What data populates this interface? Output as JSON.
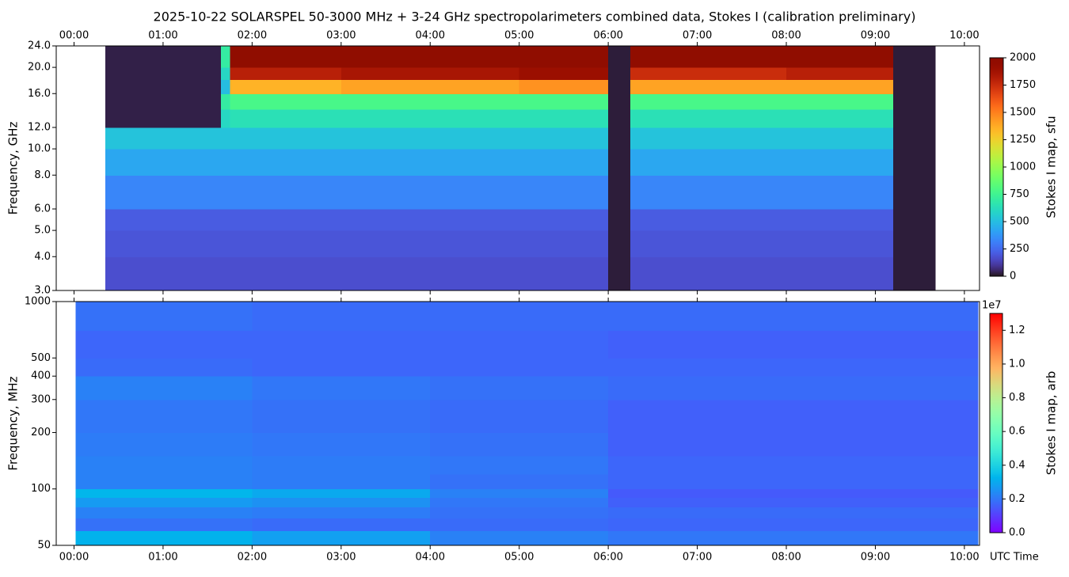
{
  "chart_data": [
    {
      "type": "heatmap",
      "title": "2025-10-22  SOLARSPEL  50-3000 MHz  +  3-24 GHz  spectropolarimeters combined data,  Stokes I  (calibration preliminary)",
      "y_label": "Frequency, GHz",
      "colorbar_label": "Stokes I map, sfu",
      "colormap": "turbo",
      "log_y": true,
      "x_ticks_position": "top",
      "xlim": [
        -0.2,
        10.17
      ],
      "ylim": [
        3,
        24
      ],
      "clim": [
        0,
        2000
      ],
      "xticks": [
        {
          "value": 0,
          "label": "00:00"
        },
        {
          "value": 1,
          "label": "01:00"
        },
        {
          "value": 2,
          "label": "02:00"
        },
        {
          "value": 3,
          "label": "03:00"
        },
        {
          "value": 4,
          "label": "04:00"
        },
        {
          "value": 5,
          "label": "05:00"
        },
        {
          "value": 6,
          "label": "06:00"
        },
        {
          "value": 7,
          "label": "07:00"
        },
        {
          "value": 8,
          "label": "08:00"
        },
        {
          "value": 9,
          "label": "09:00"
        },
        {
          "value": 10,
          "label": "10:00"
        }
      ],
      "yticks": [
        {
          "value": 3,
          "label": "3.0"
        },
        {
          "value": 4,
          "label": "4.0"
        },
        {
          "value": 5,
          "label": "5.0"
        },
        {
          "value": 6,
          "label": "6.0"
        },
        {
          "value": 8,
          "label": "8.0"
        },
        {
          "value": 10,
          "label": "10.0"
        },
        {
          "value": 12,
          "label": "12.0"
        },
        {
          "value": 16,
          "label": "16.0"
        },
        {
          "value": 20,
          "label": "20.0"
        },
        {
          "value": 24,
          "label": "24.0"
        }
      ],
      "cticks": [
        0,
        250,
        500,
        750,
        1000,
        1250,
        1500,
        1750,
        2000
      ],
      "x": [
        0.35,
        1.65,
        1.75,
        3,
        5,
        6,
        6.25,
        8,
        9.2,
        9.67
      ],
      "y": [
        3,
        4,
        5,
        6,
        8,
        10,
        12,
        14,
        16,
        18,
        20,
        24
      ],
      "values": [
        [
          170,
          170,
          170,
          170,
          170,
          20,
          170,
          170,
          20
        ],
        [
          190,
          190,
          190,
          190,
          190,
          20,
          190,
          190,
          20
        ],
        [
          210,
          210,
          210,
          210,
          210,
          20,
          210,
          210,
          20
        ],
        [
          330,
          330,
          330,
          330,
          330,
          20,
          330,
          330,
          20
        ],
        [
          430,
          430,
          430,
          430,
          430,
          20,
          430,
          430,
          20
        ],
        [
          520,
          520,
          520,
          520,
          520,
          20,
          520,
          520,
          20
        ],
        [
          30,
          600,
          640,
          640,
          640,
          20,
          640,
          640,
          20
        ],
        [
          30,
          700,
          780,
          780,
          780,
          20,
          780,
          780,
          20
        ],
        [
          30,
          500,
          1350,
          1400,
          1450,
          20,
          1400,
          1400,
          20
        ],
        [
          30,
          600,
          1800,
          1850,
          1900,
          20,
          1750,
          1800,
          20
        ],
        [
          30,
          700,
          2000,
          2000,
          2000,
          20,
          2000,
          2000,
          20
        ]
      ]
    },
    {
      "type": "heatmap",
      "y_label": "Frequency, MHz",
      "x_label": "UTC Time",
      "colorbar_label": "Stokes I map, arb",
      "colorbar_offset": "1e7",
      "colormap": "rainbow",
      "log_y": true,
      "x_ticks_position": "bottom",
      "xlim": [
        -0.2,
        10.17
      ],
      "ylim": [
        50,
        1000
      ],
      "clim": [
        0,
        1.3
      ],
      "xticks": [
        {
          "value": 0,
          "label": "00:00"
        },
        {
          "value": 1,
          "label": "01:00"
        },
        {
          "value": 2,
          "label": "02:00"
        },
        {
          "value": 3,
          "label": "03:00"
        },
        {
          "value": 4,
          "label": "04:00"
        },
        {
          "value": 5,
          "label": "05:00"
        },
        {
          "value": 6,
          "label": "06:00"
        },
        {
          "value": 7,
          "label": "07:00"
        },
        {
          "value": 8,
          "label": "08:00"
        },
        {
          "value": 9,
          "label": "09:00"
        },
        {
          "value": 10,
          "label": "10:00"
        }
      ],
      "yticks": [
        50,
        100,
        200,
        300,
        400,
        500,
        1000
      ],
      "cticks": [
        {
          "value": 0,
          "label": "0.0"
        },
        {
          "value": 0.2,
          "label": "0.2"
        },
        {
          "value": 0.4,
          "label": "0.4"
        },
        {
          "value": 0.6,
          "label": "0.6"
        },
        {
          "value": 0.8,
          "label": "0.8"
        },
        {
          "value": 1,
          "label": "1.0"
        },
        {
          "value": 1.2,
          "label": "1.2"
        }
      ],
      "x": [
        0.02,
        2,
        4,
        6,
        8,
        10.15
      ],
      "y": [
        50,
        60,
        70,
        80,
        90,
        100,
        120,
        150,
        200,
        300,
        400,
        500,
        700,
        1000
      ],
      "values": [
        [
          0.32,
          0.28,
          0.22,
          0.2,
          0.2
        ],
        [
          0.19,
          0.18,
          0.18,
          0.17,
          0.17
        ],
        [
          0.22,
          0.21,
          0.19,
          0.18,
          0.18
        ],
        [
          0.27,
          0.25,
          0.2,
          0.16,
          0.16
        ],
        [
          0.33,
          0.3,
          0.22,
          0.15,
          0.15
        ],
        [
          0.22,
          0.21,
          0.19,
          0.17,
          0.17
        ],
        [
          0.22,
          0.21,
          0.2,
          0.17,
          0.17
        ],
        [
          0.21,
          0.2,
          0.19,
          0.16,
          0.16
        ],
        [
          0.2,
          0.19,
          0.18,
          0.16,
          0.16
        ],
        [
          0.22,
          0.2,
          0.19,
          0.18,
          0.18
        ],
        [
          0.18,
          0.17,
          0.17,
          0.17,
          0.17
        ],
        [
          0.17,
          0.17,
          0.17,
          0.16,
          0.16
        ],
        [
          0.19,
          0.18,
          0.18,
          0.18,
          0.18
        ]
      ]
    }
  ]
}
